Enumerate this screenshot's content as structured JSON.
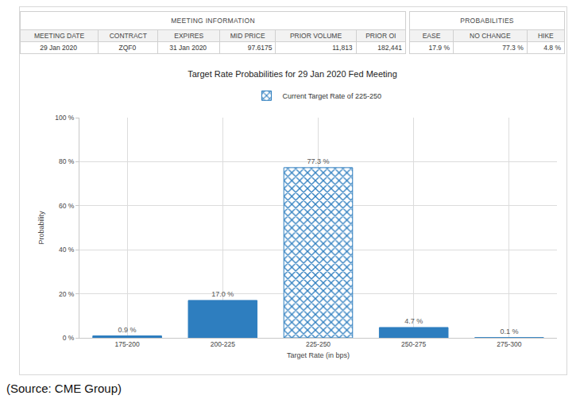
{
  "table": {
    "groups": [
      {
        "title": "MEETING INFORMATION",
        "columns": [
          "MEETING DATE",
          "CONTRACT",
          "EXPIRES",
          "MID PRICE",
          "PRIOR VOLUME",
          "PRIOR OI"
        ],
        "row": [
          "29 Jan 2020",
          "ZQF0",
          "31 Jan 2020",
          "97.6175",
          "11,813",
          "182,441"
        ]
      },
      {
        "title": "PROBABILITIES",
        "columns": [
          "EASE",
          "NO CHANGE",
          "HIKE"
        ],
        "row": [
          "17.9 %",
          "77.3 %",
          "4.8 %"
        ]
      }
    ]
  },
  "chart_data": {
    "type": "bar",
    "title": "Target Rate Probabilities for 29 Jan 2020 Fed Meeting",
    "x_label": "Target Rate (in bps)",
    "y_label": "Probability",
    "categories": [
      "175-200",
      "200-225",
      "225-250",
      "250-275",
      "275-300"
    ],
    "series": [
      {
        "name": "Current Target Rate of 225-250",
        "color": "#2e7ebf",
        "marker": "crosshatch",
        "values": [
          null,
          null,
          77.3,
          null,
          null
        ],
        "value_labels": [
          null,
          null,
          "77.3 %",
          null,
          null
        ]
      },
      {
        "color": "#2e7ebf",
        "values": [
          0.9,
          17.0,
          null,
          4.7,
          0.1
        ],
        "value_labels": [
          "0.9 %",
          "17.0 %",
          null,
          "4.7 %",
          "0.1 %"
        ]
      }
    ],
    "ylim": [
      0,
      100
    ],
    "yticks": [
      {
        "value": 0,
        "label": "0 %"
      },
      {
        "value": 20,
        "label": "20 %"
      },
      {
        "value": 40,
        "label": "40 %"
      },
      {
        "value": 60,
        "label": "60 %"
      },
      {
        "value": 80,
        "label": "80 %"
      },
      {
        "value": 100,
        "label": "100 %"
      }
    ],
    "grid": true,
    "data_labels": true,
    "legend": "top"
  },
  "source": "(Source: CME Group)"
}
